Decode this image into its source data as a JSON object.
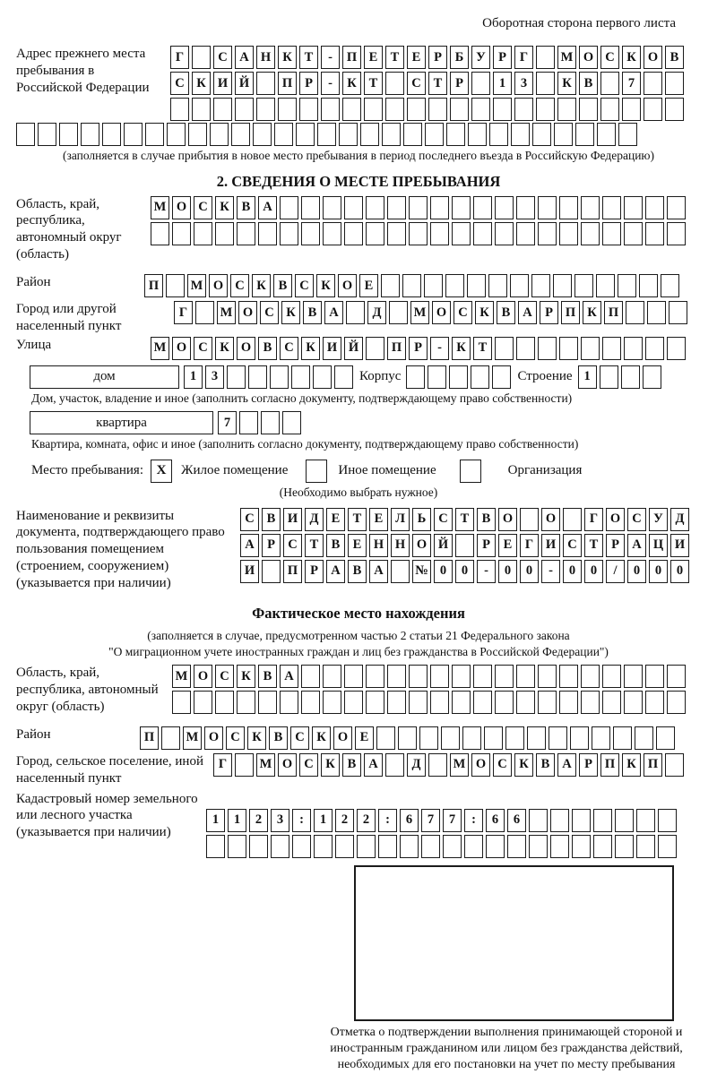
{
  "header": {
    "note": "Оборотная сторона первого листа"
  },
  "prev_address": {
    "label": "Адрес прежнего места пребывания в Российской Федерации",
    "rows": [
      {
        "chars": "Г САНКТ-ПЕТЕРБУРГ МОСКОВ",
        "len": 24
      },
      {
        "chars": "СКИЙ ПР-КТ СТР 13 КВ 7",
        "len": 24
      },
      {
        "chars": "",
        "len": 24
      }
    ],
    "full_row": {
      "chars": "",
      "len": 29
    },
    "caption": "(заполняется в случае прибытия в новое место пребывания в период последнего въезда в Российскую Федерацию)"
  },
  "section2": {
    "title": "2. СВЕДЕНИЯ О МЕСТЕ ПРЕБЫВАНИЯ",
    "region": {
      "label": "Область, край, республика, автономный округ (область)",
      "rows": [
        {
          "chars": "МОСКВА",
          "len": 25
        },
        {
          "chars": "",
          "len": 25
        }
      ]
    },
    "district": {
      "label": "Район",
      "row": {
        "chars": "П МОСКВСКОЕ",
        "len": 25
      }
    },
    "city": {
      "label": "Город или другой населенный пункт",
      "row": {
        "chars": "Г МОСКВА Д МОСКВАРПКП",
        "len": 24
      }
    },
    "street": {
      "label": "Улица",
      "row": {
        "chars": "МОСКОВСКИЙ ПР-КТ",
        "len": 25
      }
    },
    "house": {
      "label": "дом",
      "cells": {
        "chars": "13",
        "len": 8
      },
      "korpus_label": "Корпус",
      "korpus_cells": {
        "chars": "",
        "len": 5
      },
      "stroenie_label": "Строение",
      "stroenie_cells": {
        "chars": "1",
        "len": 4
      },
      "caption": "Дом, участок, владение и иное (заполнить согласно документу, подтверждающему право собственности)"
    },
    "apartment": {
      "label": "квартира",
      "cells": {
        "chars": "7",
        "len": 4
      },
      "caption": "Квартира, комната, офис и иное (заполнить согласно документу, подтверждающему право собственности)"
    },
    "place_type": {
      "label": "Место пребывания:",
      "options": [
        {
          "label": "Жилое помещение",
          "mark": "X"
        },
        {
          "label": "Иное помещение",
          "mark": ""
        },
        {
          "label": "Организация",
          "mark": ""
        }
      ],
      "hint": "(Необходимо выбрать нужное)"
    },
    "document": {
      "label": "Наименование и реквизиты документа, подтверждающего право пользования помещением (строением, сооружением) (указывается при наличии)",
      "rows": [
        {
          "chars": "СВИДЕТЕЛЬСТВО О ГОСУД",
          "len": 21
        },
        {
          "chars": "АРСТВЕННОЙ РЕГИСТРАЦИ",
          "len": 21
        },
        {
          "chars": "И ПРАВА №00-00-00/000",
          "len": 21
        }
      ]
    }
  },
  "actual_location": {
    "title": "Фактическое место нахождения",
    "note_line1": "(заполняется в случае, предусмотренном частью 2 статьи 21 Федерального закона",
    "note_line2": "\"О миграционном учете иностранных граждан и лиц без гражданства в Российской Федерации\")",
    "region": {
      "label": "Область, край, республика, автономный округ (область)",
      "rows": [
        {
          "chars": "МОСКВА",
          "len": 24
        },
        {
          "chars": "",
          "len": 24
        }
      ]
    },
    "district": {
      "label": "Район",
      "row": {
        "chars": "П МОСКВСКОЕ",
        "len": 25
      }
    },
    "city": {
      "label": "Город, сельское поселение, иной населенный пункт",
      "row": {
        "chars": "Г МОСКВА Д МОСКВАРПКП",
        "len": 22
      }
    },
    "cadastral": {
      "label": "Кадастровый номер земельного или лесного участка (указывается при наличии)",
      "rows": [
        {
          "chars": "1123:122:677:66",
          "len": 22
        },
        {
          "chars": "",
          "len": 22
        }
      ]
    },
    "stamp_caption": "Отметка о подтверждении выполнения принимающей стороной и иностранным гражданином или лицом без гражданства действий, необходимых для его постановки на учет по месту пребывания"
  }
}
